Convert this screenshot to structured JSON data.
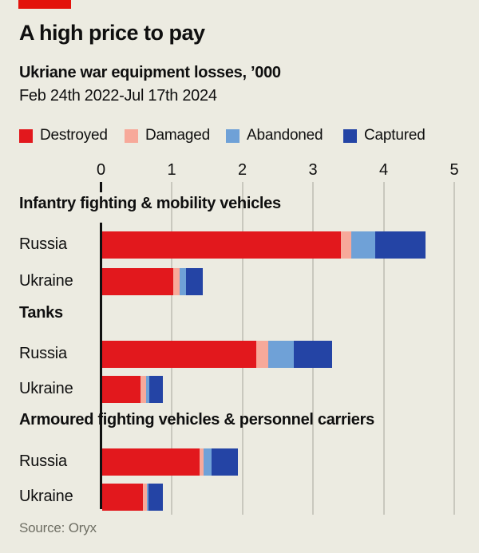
{
  "brand_color": "#E3120B",
  "background_color": "#ECEBE1",
  "header": {
    "title": "A high price to pay",
    "subtitle": "Ukriane war equipment losses, ’000",
    "date_range": "Feb 24th 2022-Jul 17th 2024"
  },
  "legend": [
    {
      "label": "Destroyed",
      "color": "#E2181D"
    },
    {
      "label": "Damaged",
      "color": "#F7A99A"
    },
    {
      "label": "Abandoned",
      "color": "#6FA1D7"
    },
    {
      "label": "Captured",
      "color": "#2444A5"
    }
  ],
  "source": "Source: Oryx",
  "chart_data": {
    "type": "bar",
    "orientation": "horizontal",
    "stacked": true,
    "title": "A high price to pay",
    "subtitle": "Ukriane war equipment losses, '000",
    "period": "Feb 24th 2022-Jul 17th 2024",
    "unit": "thousands",
    "xlim": [
      0,
      5
    ],
    "x_ticks": [
      0,
      1,
      2,
      3,
      4,
      5
    ],
    "grid": true,
    "legend_position": "top",
    "series_names": [
      "Destroyed",
      "Damaged",
      "Abandoned",
      "Captured"
    ],
    "groups": [
      {
        "label": "Infantry fighting & mobility vehicles",
        "rows": [
          {
            "label": "Russia",
            "values": [
              3.38,
              0.14,
              0.35,
              0.71
            ]
          },
          {
            "label": "Ukraine",
            "values": [
              1.0,
              0.1,
              0.09,
              0.23
            ]
          }
        ]
      },
      {
        "label": "Tanks",
        "rows": [
          {
            "label": "Russia",
            "values": [
              2.18,
              0.17,
              0.36,
              0.54
            ]
          },
          {
            "label": "Ukraine",
            "values": [
              0.54,
              0.08,
              0.05,
              0.19
            ]
          }
        ]
      },
      {
        "label": "Armoured fighting vehicles & personnel carriers",
        "rows": [
          {
            "label": "Russia",
            "values": [
              1.38,
              0.05,
              0.12,
              0.37
            ]
          },
          {
            "label": "Ukraine",
            "values": [
              0.58,
              0.05,
              0.03,
              0.2
            ]
          }
        ]
      }
    ]
  }
}
